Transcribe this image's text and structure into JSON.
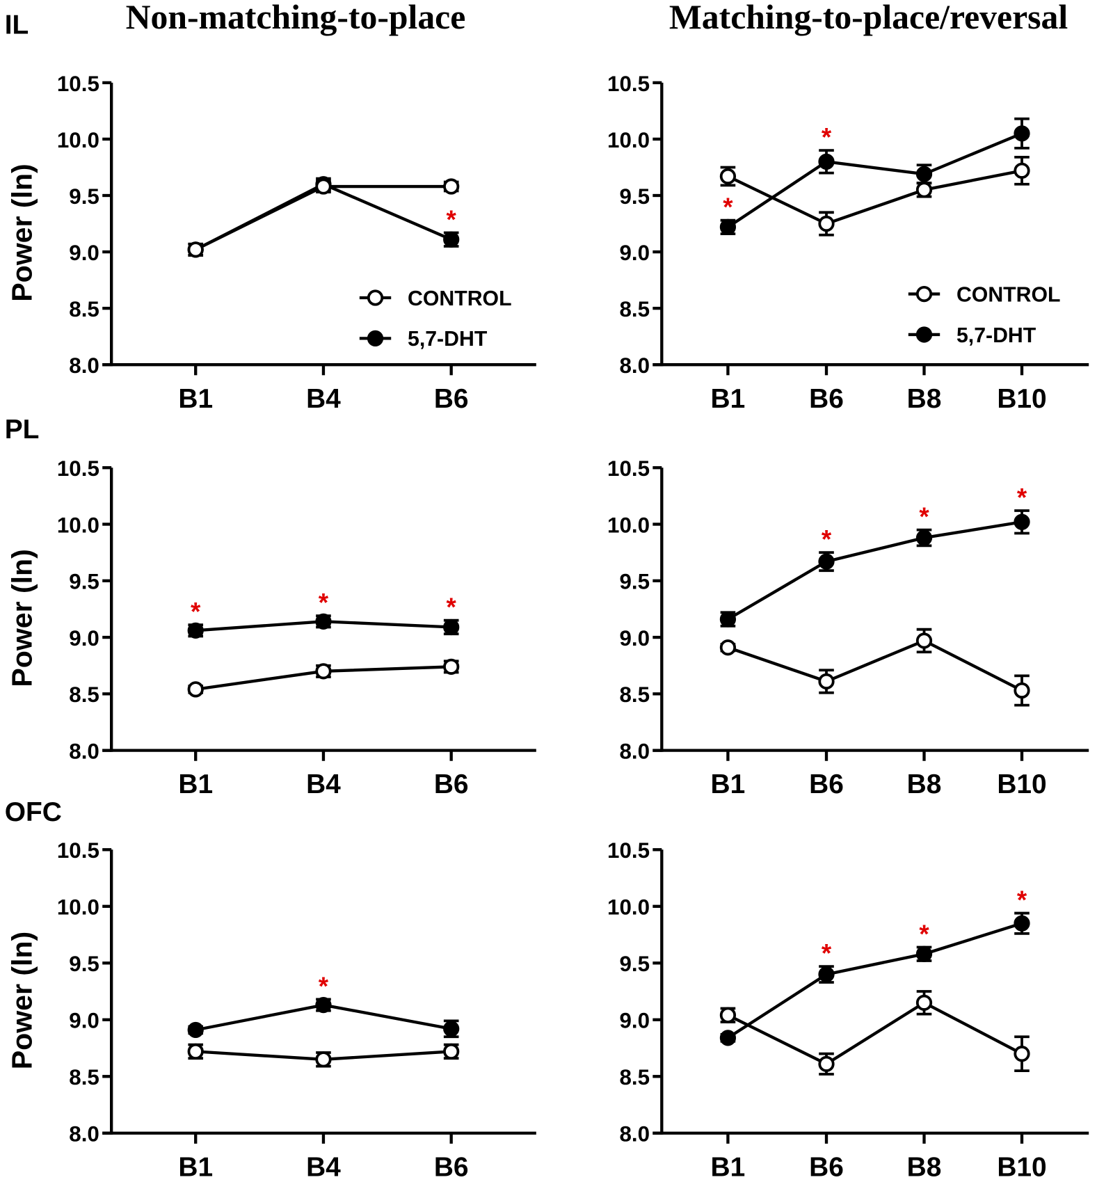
{
  "titles": {
    "left": "Non-matching-to-place",
    "right": "Matching-to-place/reversal"
  },
  "colors": {
    "star": "#e00000",
    "line": "#000000"
  },
  "chart_data": [
    {
      "type": "line",
      "row": "IL",
      "column": "left",
      "ylabel": "Power (ln)",
      "ylim": [
        8.0,
        10.5
      ],
      "yticks": [
        "8.0",
        "8.5",
        "9.0",
        "9.5",
        "10.0",
        "10.5"
      ],
      "categories": [
        "B1",
        "B4",
        "B6"
      ],
      "series": [
        {
          "name": "CONTROL",
          "marker": "open",
          "values": [
            9.02,
            9.58,
            9.58
          ],
          "errors": [
            0.05,
            0.05,
            0.04
          ]
        },
        {
          "name": "5,7-DHT",
          "marker": "filled",
          "values": [
            9.02,
            9.6,
            9.11
          ],
          "errors": [
            0.05,
            0.05,
            0.06
          ]
        }
      ],
      "significance": [
        "",
        "",
        "*"
      ],
      "legend": {
        "position": "bottom-right",
        "entries": [
          "CONTROL",
          "5,7-DHT"
        ]
      }
    },
    {
      "type": "line",
      "row": "IL",
      "column": "right",
      "ylabel": "",
      "ylim": [
        8.0,
        10.5
      ],
      "yticks": [
        "8.0",
        "8.5",
        "9.0",
        "9.5",
        "10.0",
        "10.5"
      ],
      "categories": [
        "B1",
        "B6",
        "B8",
        "B10"
      ],
      "series": [
        {
          "name": "CONTROL",
          "marker": "open",
          "values": [
            9.67,
            9.25,
            9.55,
            9.72
          ],
          "errors": [
            0.08,
            0.1,
            0.06,
            0.12
          ]
        },
        {
          "name": "5,7-DHT",
          "marker": "filled",
          "values": [
            9.22,
            9.8,
            9.69,
            10.05
          ],
          "errors": [
            0.06,
            0.1,
            0.08,
            0.13
          ]
        }
      ],
      "significance": [
        "*",
        "*",
        "",
        ""
      ],
      "legend": {
        "position": "bottom-right",
        "entries": [
          "CONTROL",
          "5,7-DHT"
        ]
      }
    },
    {
      "type": "line",
      "row": "PL",
      "column": "left",
      "ylabel": "Power (ln)",
      "ylim": [
        8.0,
        10.5
      ],
      "yticks": [
        "8.0",
        "8.5",
        "9.0",
        "9.5",
        "10.0",
        "10.5"
      ],
      "categories": [
        "B1",
        "B4",
        "B6"
      ],
      "series": [
        {
          "name": "CONTROL",
          "marker": "open",
          "values": [
            8.54,
            8.7,
            8.74
          ],
          "errors": [
            0.03,
            0.05,
            0.05
          ]
        },
        {
          "name": "5,7-DHT",
          "marker": "filled",
          "values": [
            9.06,
            9.14,
            9.09
          ],
          "errors": [
            0.05,
            0.05,
            0.06
          ]
        }
      ],
      "significance": [
        "*",
        "*",
        "*"
      ]
    },
    {
      "type": "line",
      "row": "PL",
      "column": "right",
      "ylabel": "",
      "ylim": [
        8.0,
        10.5
      ],
      "yticks": [
        "8.0",
        "8.5",
        "9.0",
        "9.5",
        "10.0",
        "10.5"
      ],
      "categories": [
        "B1",
        "B6",
        "B8",
        "B10"
      ],
      "series": [
        {
          "name": "CONTROL",
          "marker": "open",
          "values": [
            8.91,
            8.61,
            8.97,
            8.53
          ],
          "errors": [
            0.03,
            0.1,
            0.1,
            0.13
          ]
        },
        {
          "name": "5,7-DHT",
          "marker": "filled",
          "values": [
            9.16,
            9.67,
            9.88,
            10.02
          ],
          "errors": [
            0.06,
            0.08,
            0.07,
            0.1
          ]
        }
      ],
      "significance": [
        "",
        "*",
        "*",
        "*"
      ]
    },
    {
      "type": "line",
      "row": "OFC",
      "column": "left",
      "ylabel": "Power (ln)",
      "ylim": [
        8.0,
        10.5
      ],
      "yticks": [
        "8.0",
        "8.5",
        "9.0",
        "9.5",
        "10.0",
        "10.5"
      ],
      "categories": [
        "B1",
        "B4",
        "B6"
      ],
      "series": [
        {
          "name": "CONTROL",
          "marker": "open",
          "values": [
            8.72,
            8.65,
            8.72
          ],
          "errors": [
            0.06,
            0.06,
            0.06
          ]
        },
        {
          "name": "5,7-DHT",
          "marker": "filled",
          "values": [
            8.91,
            9.13,
            8.92
          ],
          "errors": [
            0.03,
            0.05,
            0.07
          ]
        }
      ],
      "significance": [
        "",
        "*",
        ""
      ]
    },
    {
      "type": "line",
      "row": "OFC",
      "column": "right",
      "ylabel": "",
      "ylim": [
        8.0,
        10.5
      ],
      "yticks": [
        "8.0",
        "8.5",
        "9.0",
        "9.5",
        "10.0",
        "10.5"
      ],
      "categories": [
        "B1",
        "B6",
        "B8",
        "B10"
      ],
      "series": [
        {
          "name": "CONTROL",
          "marker": "open",
          "values": [
            9.04,
            8.61,
            9.15,
            8.7
          ],
          "errors": [
            0.06,
            0.09,
            0.1,
            0.15
          ]
        },
        {
          "name": "5,7-DHT",
          "marker": "filled",
          "values": [
            8.84,
            9.4,
            9.58,
            9.85
          ],
          "errors": [
            0.03,
            0.07,
            0.06,
            0.09
          ]
        }
      ],
      "significance": [
        "",
        "*",
        "*",
        "*"
      ]
    }
  ]
}
